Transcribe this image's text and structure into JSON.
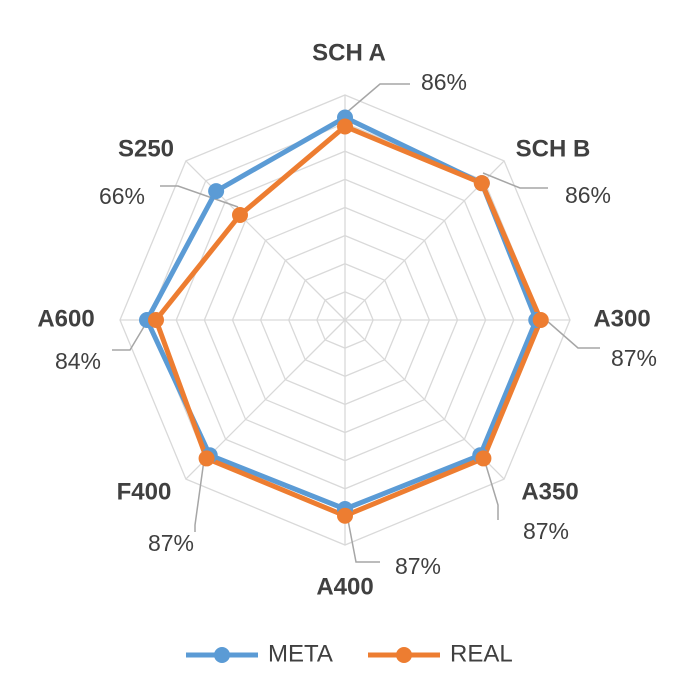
{
  "chart_data": {
    "type": "radar",
    "categories": [
      "SCH A",
      "SCH B",
      "A300",
      "A350",
      "A400",
      "F400",
      "A600",
      "S250"
    ],
    "rmax": 100,
    "rings": 8,
    "grid": true,
    "legend_placement": "bottom",
    "series": [
      {
        "name": "META",
        "color": "#5B9BD5",
        "values": [
          90,
          86,
          85,
          85,
          84,
          85,
          88,
          81
        ]
      },
      {
        "name": "REAL",
        "color": "#ED7D31",
        "values": [
          86,
          86,
          87,
          87,
          87,
          87,
          84,
          66
        ]
      }
    ],
    "data_labels": [
      "86%",
      "86%",
      "87%",
      "87%",
      "87%",
      "87%",
      "84%",
      "66%"
    ]
  }
}
